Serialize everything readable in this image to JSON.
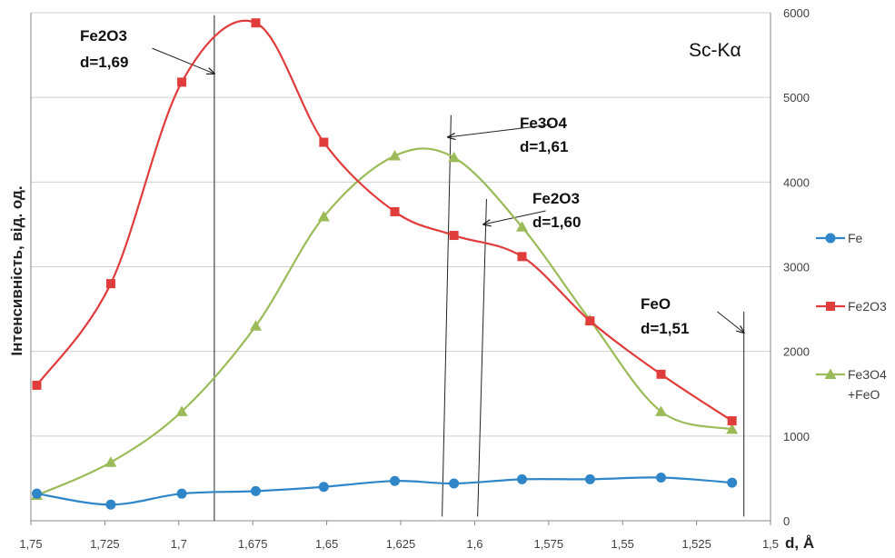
{
  "chart_data": {
    "type": "line",
    "title": "Sc-Kα",
    "xlabel": "d, Å",
    "ylabel": "Інтенсивність, від. од.",
    "xlim": [
      1.75,
      1.5
    ],
    "ylim": [
      0,
      6000
    ],
    "x_ticks": [
      "1,75",
      "1,725",
      "1,7",
      "1,675",
      "1,65",
      "1,625",
      "1,6",
      "1,575",
      "1,55",
      "1,525",
      "1,5"
    ],
    "x_tick_values": [
      1.75,
      1.725,
      1.7,
      1.675,
      1.65,
      1.625,
      1.6,
      1.575,
      1.55,
      1.525,
      1.5
    ],
    "y_ticks": [
      "0",
      "1000",
      "2000",
      "3000",
      "4000",
      "5000",
      "6000"
    ],
    "y_tick_values": [
      0,
      1000,
      2000,
      3000,
      4000,
      5000,
      6000
    ],
    "grid": true,
    "legend_position": "right",
    "series": [
      {
        "name": "Fe",
        "color": "#2E86C8",
        "marker": "circle",
        "x": [
          1.748,
          1.723,
          1.699,
          1.674,
          1.651,
          1.627,
          1.607,
          1.584,
          1.561,
          1.537,
          1.513
        ],
        "y": [
          320,
          190,
          320,
          350,
          400,
          470,
          440,
          490,
          490,
          510,
          450
        ]
      },
      {
        "name": "Fe2O3",
        "color": "#E03C3C",
        "marker": "square",
        "x": [
          1.748,
          1.723,
          1.699,
          1.674,
          1.651,
          1.627,
          1.607,
          1.584,
          1.561,
          1.537,
          1.513
        ],
        "y": [
          1600,
          2800,
          5180,
          5880,
          4470,
          3650,
          3370,
          3120,
          2360,
          1730,
          1180
        ]
      },
      {
        "name": "Fe3O4 +FeO",
        "legend_lines": [
          "Fe3O4",
          "+FeO"
        ],
        "color": "#9BBB59",
        "marker": "triangle",
        "x": [
          1.748,
          1.723,
          1.699,
          1.674,
          1.651,
          1.627,
          1.607,
          1.584,
          1.561,
          1.537,
          1.513
        ],
        "y": [
          300,
          690,
          1290,
          2300,
          3590,
          4310,
          4290,
          3470,
          2370,
          1290,
          1080
        ]
      }
    ],
    "reference_lines": [
      {
        "label_lines": [
          "Fe2O3",
          "d=1,69"
        ],
        "line_x": [
          1.688,
          1.688
        ],
        "line_y": [
          0,
          5970
        ],
        "arrow_to": [
          1.688,
          5280
        ],
        "arrow_from": [
          1.709,
          5580
        ]
      },
      {
        "label_lines": [
          "Fe3O4",
          "d=1,61"
        ],
        "line_x": [
          1.611,
          1.608
        ],
        "line_y": [
          50,
          4790
        ],
        "arrow_to": [
          1.609,
          4530
        ],
        "arrow_from": [
          1.574,
          4680
        ]
      },
      {
        "label_lines": [
          "Fe2O3",
          "d=1,60"
        ],
        "line_x": [
          1.599,
          1.596
        ],
        "line_y": [
          50,
          3800
        ],
        "arrow_to": [
          1.597,
          3500
        ],
        "arrow_from": [
          1.576,
          3660
        ]
      },
      {
        "label_lines": [
          "FeO",
          "d=1,51"
        ],
        "line_x": [
          1.509,
          1.509
        ],
        "line_y": [
          50,
          2470
        ],
        "arrow_to": [
          1.509,
          2220
        ],
        "arrow_from": [
          1.518,
          2470
        ]
      }
    ]
  }
}
